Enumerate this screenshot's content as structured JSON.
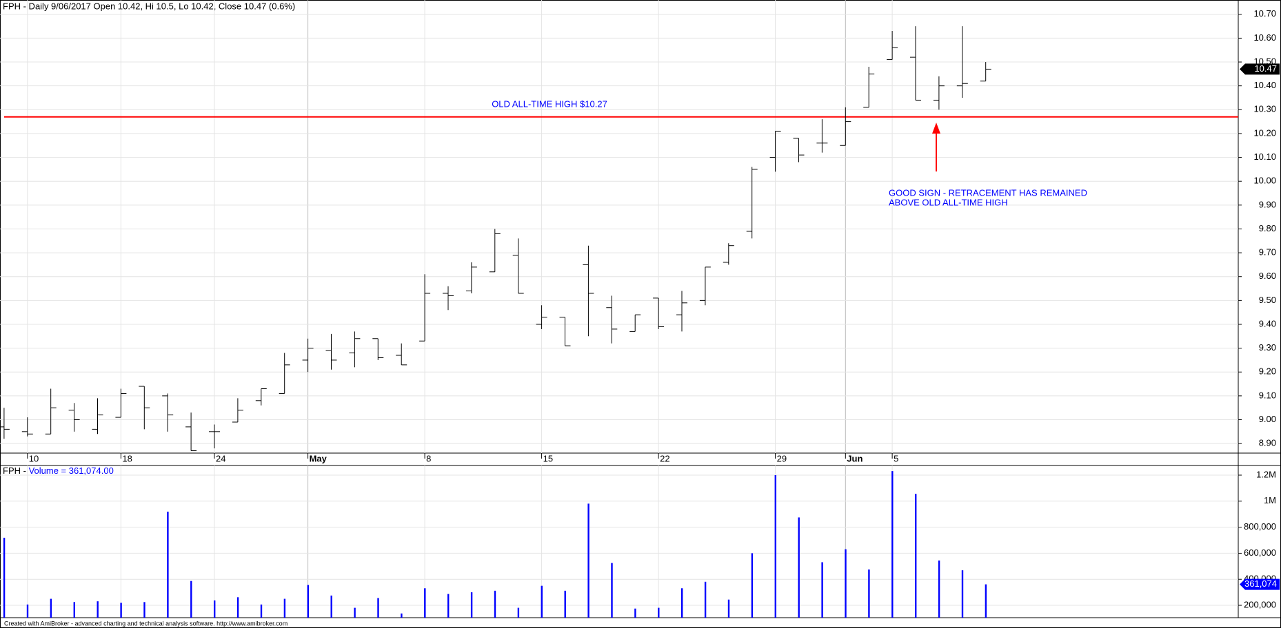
{
  "chart_data": [
    {
      "type": "ohlc",
      "title": "FPH - Daily 9/06/2017 Open 10.42, Hi 10.5, Lo 10.42, Close 10.47 (0.6%)",
      "categories": [
        null,
        "10",
        null,
        null,
        null,
        "18",
        null,
        null,
        null,
        "24",
        null,
        null,
        null,
        "May",
        null,
        null,
        null,
        null,
        "8",
        null,
        null,
        null,
        null,
        "15",
        null,
        null,
        null,
        null,
        "22",
        null,
        null,
        null,
        null,
        "29",
        null,
        null,
        "Jun",
        null,
        "5",
        null,
        null,
        null,
        null
      ],
      "open": [
        8.97,
        8.95,
        8.94,
        9.04,
        8.96,
        9.01,
        9.14,
        9.1,
        8.97,
        8.95,
        8.99,
        9.08,
        9.11,
        9.25,
        9.29,
        9.28,
        9.34,
        9.27,
        9.33,
        9.53,
        9.54,
        9.62,
        9.69,
        9.4,
        9.43,
        9.65,
        9.47,
        9.37,
        9.51,
        9.44,
        9.5,
        9.66,
        9.79,
        10.1,
        10.18,
        10.16,
        10.15,
        10.31,
        10.51,
        10.52,
        10.34,
        10.4,
        10.42
      ],
      "high": [
        9.05,
        9.01,
        9.13,
        9.07,
        9.09,
        9.13,
        9.14,
        9.11,
        9.03,
        8.98,
        9.09,
        9.13,
        9.28,
        9.34,
        9.36,
        9.37,
        9.34,
        9.32,
        9.61,
        9.56,
        9.66,
        9.8,
        9.76,
        9.48,
        9.43,
        9.73,
        9.52,
        9.44,
        9.51,
        9.54,
        9.64,
        9.74,
        10.06,
        10.21,
        10.18,
        10.26,
        10.31,
        10.48,
        10.63,
        10.65,
        10.44,
        10.65,
        10.5
      ],
      "low": [
        8.92,
        8.93,
        8.94,
        8.95,
        8.94,
        9.01,
        8.96,
        8.95,
        8.87,
        8.88,
        8.99,
        9.06,
        9.11,
        9.2,
        9.21,
        9.22,
        9.25,
        9.23,
        9.33,
        9.46,
        9.53,
        9.62,
        9.53,
        9.38,
        9.31,
        9.35,
        9.32,
        9.37,
        9.38,
        9.37,
        9.48,
        9.65,
        9.76,
        10.04,
        10.08,
        10.12,
        10.15,
        10.31,
        10.51,
        10.34,
        10.3,
        10.35,
        10.42
      ],
      "close": [
        8.96,
        8.94,
        9.05,
        9.0,
        9.02,
        9.11,
        9.05,
        9.02,
        8.87,
        8.95,
        9.04,
        9.13,
        9.23,
        9.3,
        9.25,
        9.34,
        9.26,
        9.23,
        9.53,
        9.52,
        9.64,
        9.78,
        9.53,
        9.43,
        9.31,
        9.53,
        9.38,
        9.44,
        9.39,
        9.49,
        9.64,
        9.73,
        10.05,
        10.21,
        10.11,
        10.16,
        10.25,
        10.45,
        10.56,
        10.34,
        10.4,
        10.41,
        10.47
      ],
      "color": "#000000",
      "ylim": [
        8.86,
        10.76
      ],
      "yticks": [
        {
          "value": 8.9,
          "label": "8.90"
        },
        {
          "value": 9.0,
          "label": "9.00"
        },
        {
          "value": 9.1,
          "label": "9.10"
        },
        {
          "value": 9.2,
          "label": "9.20"
        },
        {
          "value": 9.3,
          "label": "9.30"
        },
        {
          "value": 9.4,
          "label": "9.40"
        },
        {
          "value": 9.5,
          "label": "9.50"
        },
        {
          "value": 9.6,
          "label": "9.60"
        },
        {
          "value": 9.7,
          "label": "9.70"
        },
        {
          "value": 9.8,
          "label": "9.80"
        },
        {
          "value": 9.9,
          "label": "9.90"
        },
        {
          "value": 10.0,
          "label": "10.00"
        },
        {
          "value": 10.1,
          "label": "10.10"
        },
        {
          "value": 10.2,
          "label": "10.20"
        },
        {
          "value": 10.3,
          "label": "10.30"
        },
        {
          "value": 10.4,
          "label": "10.40"
        },
        {
          "value": 10.5,
          "label": "10.50"
        },
        {
          "value": 10.6,
          "label": "10.60"
        },
        {
          "value": 10.7,
          "label": "10.70"
        }
      ],
      "grid": true,
      "last_label": "10.47",
      "hline": {
        "value": 10.27,
        "color": "#ff0000",
        "label": "OLD ALL-TIME HIGH $10.27"
      },
      "annotation": [
        "GOOD SIGN - RETRACEMENT HAS REMAINED",
        "ABOVE OLD ALL-TIME HIGH"
      ]
    },
    {
      "type": "bar",
      "title_prefix": "FPH - ",
      "title": "Volume = 361,074.00",
      "values": [
        719000,
        206000,
        250000,
        225000,
        231000,
        219000,
        225000,
        919000,
        387000,
        237000,
        262000,
        206000,
        250000,
        356000,
        275000,
        181000,
        256000,
        137000,
        331000,
        287000,
        300000,
        312000,
        181000,
        350000,
        312000,
        981000,
        525000,
        175000,
        181000,
        331000,
        381000,
        244000,
        600000,
        1200000,
        875000,
        531000,
        631000,
        475000,
        1231000,
        1056000,
        544000,
        469000,
        361074
      ],
      "color": "#0000ff",
      "ylim": [
        105000,
        1274000
      ],
      "yticks": [
        {
          "value": 200000,
          "label": "200,000"
        },
        {
          "value": 400000,
          "label": "400,000"
        },
        {
          "value": 600000,
          "label": "600,000"
        },
        {
          "value": 800000,
          "label": "800,000"
        },
        {
          "value": 1000000,
          "label": "1M"
        },
        {
          "value": 1200000,
          "label": "1.2M"
        }
      ],
      "grid": true,
      "last_label": "361,074"
    }
  ],
  "footer": "Created with AmiBroker - advanced charting and technical analysis software. http://www.amibroker.com"
}
